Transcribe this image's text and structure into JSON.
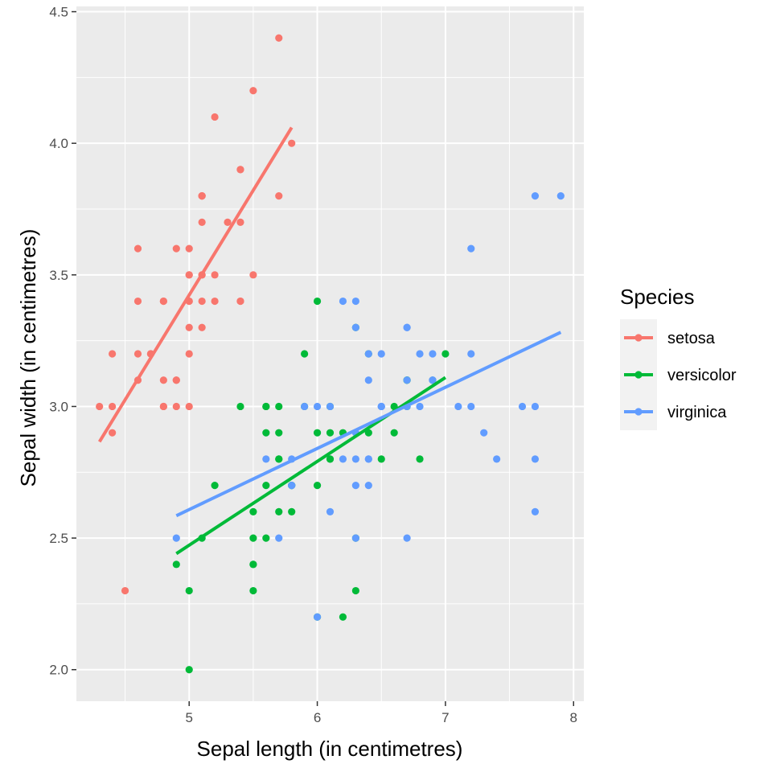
{
  "chart_data": {
    "type": "scatter",
    "xlabel": "Sepal length (in centimetres)",
    "ylabel": "Sepal width (in centimetres)",
    "xlim": [
      4.12,
      8.08
    ],
    "ylim": [
      1.88,
      4.52
    ],
    "x_ticks": [
      5,
      6,
      7,
      8
    ],
    "x_tick_labels": [
      "5",
      "6",
      "7",
      "8"
    ],
    "y_ticks": [
      2.0,
      2.5,
      3.0,
      3.5,
      4.0,
      4.5
    ],
    "y_tick_labels": [
      "2.0",
      "2.5",
      "3.0",
      "3.5",
      "4.0",
      "4.5"
    ],
    "grid": true,
    "legend": {
      "title": "Species",
      "position": "right"
    },
    "series": [
      {
        "name": "setosa",
        "color": "#F8766D",
        "points": [
          [
            5.1,
            3.5
          ],
          [
            4.9,
            3.0
          ],
          [
            4.7,
            3.2
          ],
          [
            4.6,
            3.1
          ],
          [
            5.0,
            3.6
          ],
          [
            5.4,
            3.9
          ],
          [
            4.6,
            3.4
          ],
          [
            5.0,
            3.4
          ],
          [
            4.4,
            2.9
          ],
          [
            4.9,
            3.1
          ],
          [
            5.4,
            3.7
          ],
          [
            4.8,
            3.4
          ],
          [
            4.8,
            3.0
          ],
          [
            4.3,
            3.0
          ],
          [
            5.8,
            4.0
          ],
          [
            5.7,
            4.4
          ],
          [
            5.4,
            3.9
          ],
          [
            5.1,
            3.5
          ],
          [
            5.7,
            3.8
          ],
          [
            5.1,
            3.8
          ],
          [
            5.4,
            3.4
          ],
          [
            5.1,
            3.7
          ],
          [
            4.6,
            3.6
          ],
          [
            5.1,
            3.3
          ],
          [
            4.8,
            3.4
          ],
          [
            5.0,
            3.0
          ],
          [
            5.0,
            3.4
          ],
          [
            5.2,
            3.5
          ],
          [
            5.2,
            3.4
          ],
          [
            4.7,
            3.2
          ],
          [
            4.8,
            3.1
          ],
          [
            5.4,
            3.4
          ],
          [
            5.2,
            4.1
          ],
          [
            5.5,
            4.2
          ],
          [
            4.9,
            3.1
          ],
          [
            5.0,
            3.2
          ],
          [
            5.5,
            3.5
          ],
          [
            4.9,
            3.6
          ],
          [
            4.4,
            3.0
          ],
          [
            5.1,
            3.4
          ],
          [
            5.0,
            3.5
          ],
          [
            4.5,
            2.3
          ],
          [
            4.4,
            3.2
          ],
          [
            5.0,
            3.5
          ],
          [
            5.1,
            3.8
          ],
          [
            4.8,
            3.0
          ],
          [
            5.1,
            3.8
          ],
          [
            4.6,
            3.2
          ],
          [
            5.3,
            3.7
          ],
          [
            5.0,
            3.3
          ]
        ],
        "fit": [
          [
            4.3,
            2.866
          ],
          [
            5.8,
            4.06
          ]
        ]
      },
      {
        "name": "versicolor",
        "color": "#00BA38",
        "points": [
          [
            7.0,
            3.2
          ],
          [
            6.4,
            3.2
          ],
          [
            6.9,
            3.1
          ],
          [
            5.5,
            2.3
          ],
          [
            6.5,
            2.8
          ],
          [
            5.7,
            2.8
          ],
          [
            6.3,
            3.3
          ],
          [
            4.9,
            2.4
          ],
          [
            6.6,
            2.9
          ],
          [
            5.2,
            2.7
          ],
          [
            5.0,
            2.0
          ],
          [
            5.9,
            3.0
          ],
          [
            6.0,
            2.2
          ],
          [
            6.1,
            2.9
          ],
          [
            5.6,
            2.9
          ],
          [
            6.7,
            3.1
          ],
          [
            5.6,
            3.0
          ],
          [
            5.8,
            2.7
          ],
          [
            6.2,
            2.2
          ],
          [
            5.6,
            2.5
          ],
          [
            5.9,
            3.2
          ],
          [
            6.1,
            2.8
          ],
          [
            6.3,
            2.5
          ],
          [
            6.1,
            2.8
          ],
          [
            6.4,
            2.9
          ],
          [
            6.6,
            3.0
          ],
          [
            6.8,
            2.8
          ],
          [
            6.7,
            3.0
          ],
          [
            6.0,
            2.9
          ],
          [
            5.7,
            2.6
          ],
          [
            5.5,
            2.4
          ],
          [
            5.5,
            2.4
          ],
          [
            5.8,
            2.7
          ],
          [
            6.0,
            2.7
          ],
          [
            5.4,
            3.0
          ],
          [
            6.0,
            3.4
          ],
          [
            6.7,
            3.1
          ],
          [
            6.3,
            2.3
          ],
          [
            5.6,
            3.0
          ],
          [
            5.5,
            2.5
          ],
          [
            5.5,
            2.6
          ],
          [
            6.1,
            3.0
          ],
          [
            5.8,
            2.6
          ],
          [
            5.0,
            2.3
          ],
          [
            5.6,
            2.7
          ],
          [
            5.7,
            3.0
          ],
          [
            5.7,
            2.9
          ],
          [
            6.2,
            2.9
          ],
          [
            5.1,
            2.5
          ],
          [
            5.7,
            2.8
          ]
        ],
        "fit": [
          [
            4.9,
            2.441
          ],
          [
            7.0,
            3.11
          ]
        ]
      },
      {
        "name": "virginica",
        "color": "#619CFF",
        "points": [
          [
            6.3,
            3.3
          ],
          [
            5.8,
            2.7
          ],
          [
            7.1,
            3.0
          ],
          [
            6.3,
            2.9
          ],
          [
            6.5,
            3.0
          ],
          [
            7.6,
            3.0
          ],
          [
            4.9,
            2.5
          ],
          [
            7.3,
            2.9
          ],
          [
            6.7,
            2.5
          ],
          [
            7.2,
            3.6
          ],
          [
            6.5,
            3.2
          ],
          [
            6.4,
            2.7
          ],
          [
            6.8,
            3.0
          ],
          [
            5.7,
            2.5
          ],
          [
            5.8,
            2.8
          ],
          [
            6.4,
            3.2
          ],
          [
            6.5,
            3.0
          ],
          [
            7.7,
            3.8
          ],
          [
            7.7,
            2.6
          ],
          [
            6.0,
            2.2
          ],
          [
            6.9,
            3.2
          ],
          [
            5.6,
            2.8
          ],
          [
            7.7,
            2.8
          ],
          [
            6.3,
            2.7
          ],
          [
            6.7,
            3.3
          ],
          [
            7.2,
            3.2
          ],
          [
            6.2,
            2.8
          ],
          [
            6.1,
            3.0
          ],
          [
            6.4,
            2.8
          ],
          [
            7.2,
            3.0
          ],
          [
            7.4,
            2.8
          ],
          [
            7.9,
            3.8
          ],
          [
            6.4,
            2.8
          ],
          [
            6.3,
            2.8
          ],
          [
            6.1,
            2.6
          ],
          [
            7.7,
            3.0
          ],
          [
            6.3,
            3.4
          ],
          [
            6.4,
            3.1
          ],
          [
            6.0,
            3.0
          ],
          [
            6.9,
            3.1
          ],
          [
            6.7,
            3.1
          ],
          [
            6.9,
            3.1
          ],
          [
            5.8,
            2.7
          ],
          [
            6.8,
            3.2
          ],
          [
            6.7,
            3.3
          ],
          [
            6.7,
            3.0
          ],
          [
            6.3,
            2.5
          ],
          [
            6.5,
            3.0
          ],
          [
            6.2,
            3.4
          ],
          [
            5.9,
            3.0
          ]
        ],
        "fit": [
          [
            4.9,
            2.585
          ],
          [
            7.9,
            3.282
          ]
        ]
      }
    ]
  }
}
